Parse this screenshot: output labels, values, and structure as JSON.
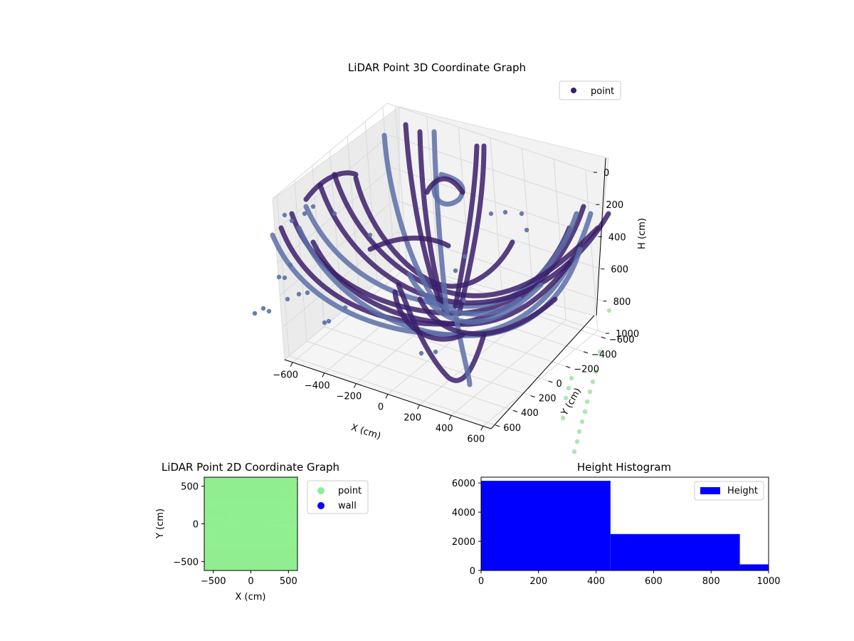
{
  "chart_data": [
    {
      "type": "scatter",
      "projection": "3d",
      "title": "LiDAR Point 3D Coordinate Graph",
      "xlabel": "X (cm)",
      "ylabel": "Y (cm)",
      "zlabel": "H (cm)",
      "xlim": [
        -650,
        650
      ],
      "ylim": [
        -650,
        650
      ],
      "zlim": [
        0,
        1000
      ],
      "z_inverted": true,
      "xticks": [
        "−600",
        "−400",
        "−200",
        "0",
        "200",
        "400",
        "600"
      ],
      "yticks": [
        "−600",
        "−400",
        "−200",
        "0",
        "200",
        "400",
        "600"
      ],
      "zticks": [
        "0",
        "200",
        "400",
        "600",
        "800",
        "1000"
      ],
      "legend": {
        "entries": [
          "point"
        ],
        "placement": "upper-right"
      },
      "grid": true,
      "colors": {
        "points": "#3b1f6b",
        "points_light": "#5a6fa8",
        "pane": "#f2f2f2",
        "spill": "#9edc9e"
      }
    },
    {
      "type": "scatter",
      "title": "LiDAR Point 2D Coordinate Graph",
      "xlabel": "X (cm)",
      "ylabel": "Y (cm)",
      "xlim": [
        -620,
        620
      ],
      "ylim": [
        -620,
        620
      ],
      "xticks": [
        "−500",
        "0",
        "500"
      ],
      "yticks": [
        "500",
        "0",
        "−500"
      ],
      "series": [
        {
          "name": "point",
          "color": "#90ee90"
        },
        {
          "name": "wall",
          "color": "#0000ff"
        }
      ],
      "legend": {
        "entries": [
          "point",
          "wall"
        ],
        "placement": "outside-right"
      }
    },
    {
      "type": "bar",
      "title": "Height Histogram",
      "xlim": [
        0,
        1000
      ],
      "ylim": [
        0,
        6400
      ],
      "xticks": [
        "0",
        "200",
        "400",
        "600",
        "800",
        "1000"
      ],
      "yticks": [
        "0",
        "2000",
        "4000",
        "6000"
      ],
      "bins": [
        {
          "start": 0,
          "end": 450,
          "count": 6150
        },
        {
          "start": 450,
          "end": 900,
          "count": 2500
        },
        {
          "start": 900,
          "end": 1000,
          "count": 420
        }
      ],
      "series": [
        {
          "name": "Height",
          "color": "#0000ff"
        }
      ],
      "legend": {
        "entries": [
          "Height"
        ],
        "placement": "upper-right"
      }
    }
  ]
}
